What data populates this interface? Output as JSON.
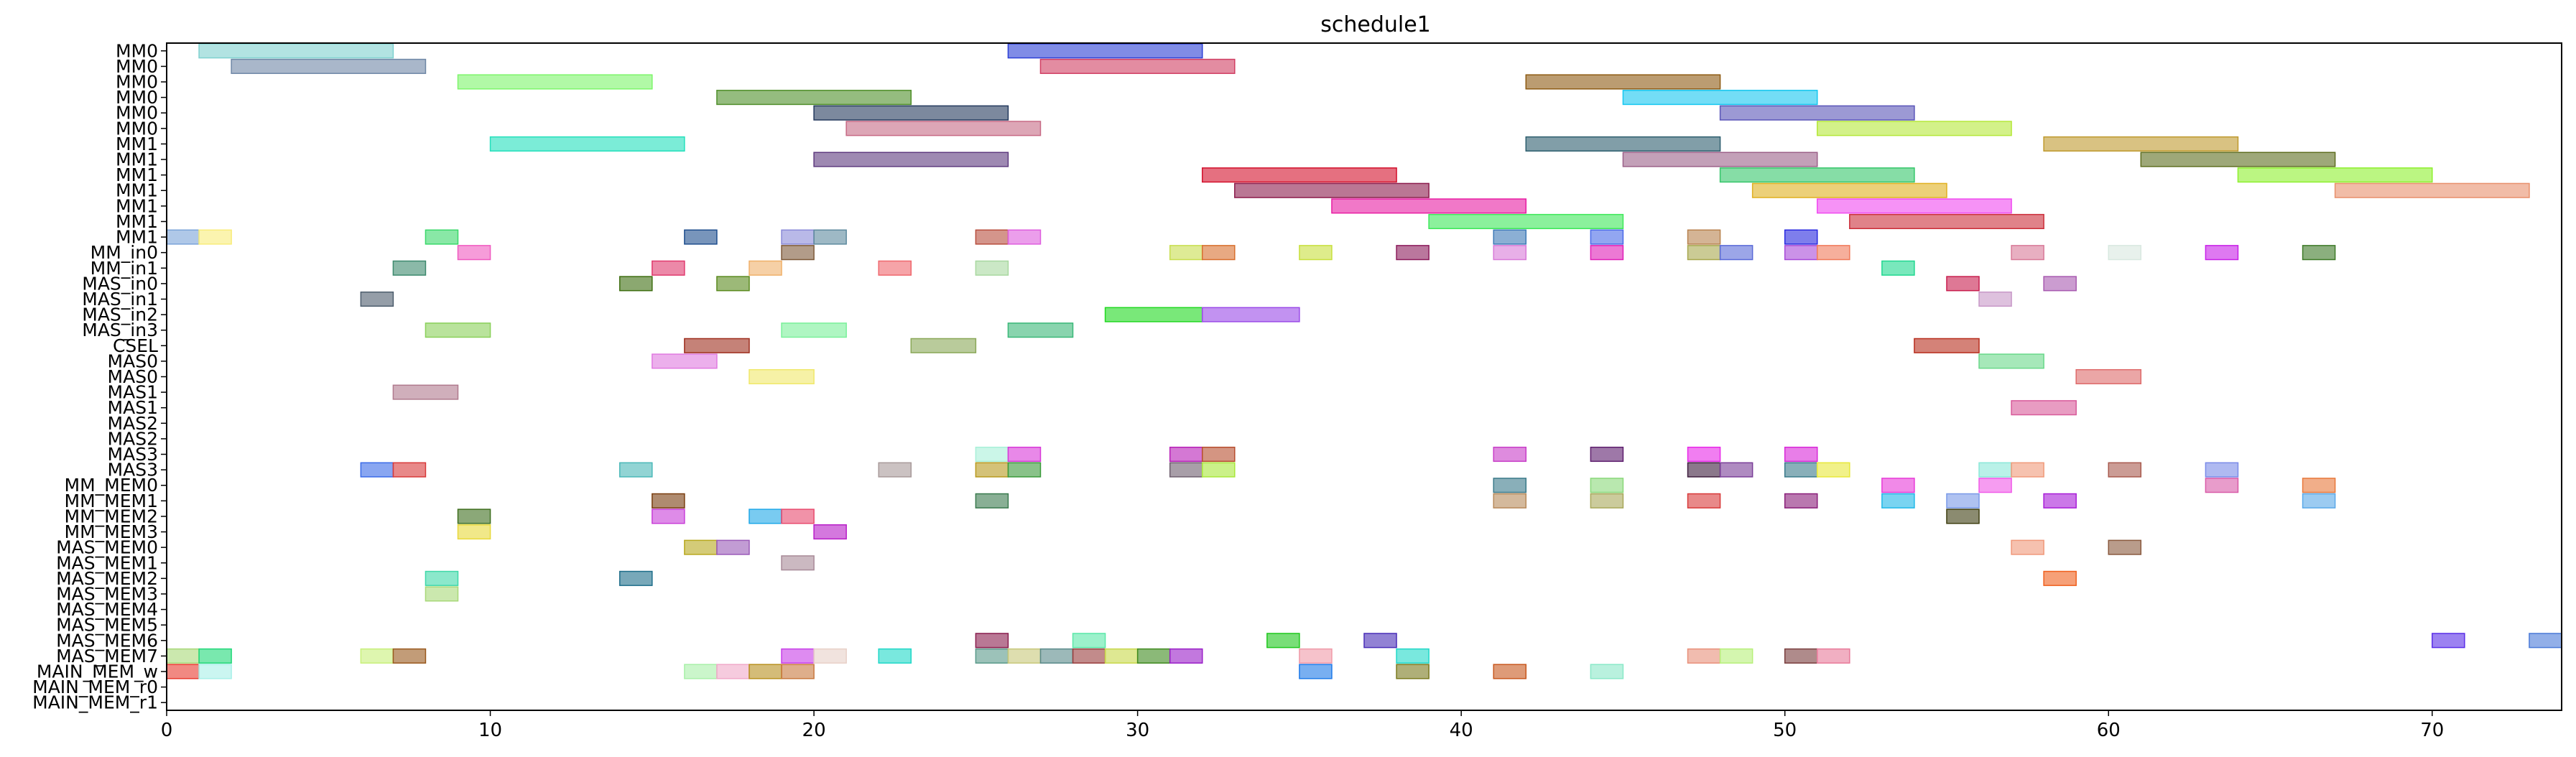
{
  "chart_data": {
    "type": "gantt",
    "title": "schedule1",
    "xlabel": "",
    "ylabel": "",
    "xlim": [
      0,
      74
    ],
    "xticks": [
      0,
      10,
      20,
      30,
      40,
      50,
      60,
      70
    ],
    "rows": [
      "MM0",
      "MM0",
      "MM0",
      "MM0",
      "MM0",
      "MM0",
      "MM1",
      "MM1",
      "MM1",
      "MM1",
      "MM1",
      "MM1",
      "MM1",
      "MM_in0",
      "MM_in1",
      "MAS_in0",
      "MAS_in1",
      "MAS_in2",
      "MAS_in3",
      "CSEL",
      "MAS0",
      "MAS0",
      "MAS1",
      "MAS1",
      "MAS2",
      "MAS2",
      "MAS3",
      "MAS3",
      "MM_MEM0",
      "MM_MEM1",
      "MM_MEM2",
      "MM_MEM3",
      "MAS_MEM0",
      "MAS_MEM1",
      "MAS_MEM2",
      "MAS_MEM3",
      "MAS_MEM4",
      "MAS_MEM5",
      "MAS_MEM6",
      "MAS_MEM7",
      "MAIN_MEM_w",
      "MAIN_MEM_r0",
      "MAIN_MEM_r1"
    ],
    "tasks": [
      {
        "row": 0,
        "start": 1,
        "end": 7,
        "color": "#7fd1cf"
      },
      {
        "row": 0,
        "start": 26,
        "end": 32,
        "color": "#2b3fd6"
      },
      {
        "row": 1,
        "start": 2,
        "end": 8,
        "color": "#6f87a6"
      },
      {
        "row": 1,
        "start": 27,
        "end": 33,
        "color": "#d13f63"
      },
      {
        "row": 2,
        "start": 9,
        "end": 15,
        "color": "#7df56a"
      },
      {
        "row": 2,
        "start": 42,
        "end": 48,
        "color": "#8d5a12"
      },
      {
        "row": 3,
        "start": 17,
        "end": 23,
        "color": "#4f8f2a"
      },
      {
        "row": 3,
        "start": 45,
        "end": 51,
        "color": "#15c7f0"
      },
      {
        "row": 4,
        "start": 20,
        "end": 26,
        "color": "#243a5e"
      },
      {
        "row": 4,
        "start": 48,
        "end": 54,
        "color": "#5a55b8"
      },
      {
        "row": 5,
        "start": 21,
        "end": 27,
        "color": "#c76a85"
      },
      {
        "row": 5,
        "start": 51,
        "end": 57,
        "color": "#b5e83a"
      },
      {
        "row": 6,
        "start": 10,
        "end": 16,
        "color": "#23e0bc"
      },
      {
        "row": 6,
        "start": 42,
        "end": 48,
        "color": "#2d5e6e"
      },
      {
        "row": 6,
        "start": 58,
        "end": 64,
        "color": "#bf9a2e"
      },
      {
        "row": 7,
        "start": 20,
        "end": 26,
        "color": "#5e3a7e"
      },
      {
        "row": 7,
        "start": 45,
        "end": 51,
        "color": "#9b6088"
      },
      {
        "row": 7,
        "start": 61,
        "end": 67,
        "color": "#5e6e1f"
      },
      {
        "row": 8,
        "start": 32,
        "end": 38,
        "color": "#d3102c"
      },
      {
        "row": 8,
        "start": 48,
        "end": 54,
        "color": "#35c66a"
      },
      {
        "row": 8,
        "start": 64,
        "end": 70,
        "color": "#8ef02e"
      },
      {
        "row": 9,
        "start": 33,
        "end": 39,
        "color": "#8c1c4c"
      },
      {
        "row": 9,
        "start": 49,
        "end": 55,
        "color": "#e0b020"
      },
      {
        "row": 9,
        "start": 67,
        "end": 73,
        "color": "#e8906c"
      },
      {
        "row": 10,
        "start": 36,
        "end": 42,
        "color": "#e81ea3"
      },
      {
        "row": 10,
        "start": 51,
        "end": 57,
        "color": "#f04af0"
      },
      {
        "row": 11,
        "start": 39,
        "end": 45,
        "color": "#3ee85a"
      },
      {
        "row": 11,
        "start": 52,
        "end": 58,
        "color": "#cc2e3a"
      },
      {
        "row": 12,
        "start": 0,
        "end": 1,
        "color": "#7aa3d8"
      },
      {
        "row": 12,
        "start": 1,
        "end": 2,
        "color": "#f8ec7a"
      },
      {
        "row": 12,
        "start": 8,
        "end": 9,
        "color": "#3ad86a"
      },
      {
        "row": 12,
        "start": 16,
        "end": 17,
        "color": "#1e4e8e"
      },
      {
        "row": 12,
        "start": 19,
        "end": 20,
        "color": "#8a8ad8"
      },
      {
        "row": 12,
        "start": 20,
        "end": 21,
        "color": "#5e8a9e"
      },
      {
        "row": 12,
        "start": 25,
        "end": 26,
        "color": "#b84e3e"
      },
      {
        "row": 12,
        "start": 26,
        "end": 27,
        "color": "#de5ede"
      },
      {
        "row": 12,
        "start": 41,
        "end": 42,
        "color": "#3e7ab8"
      },
      {
        "row": 12,
        "start": 44,
        "end": 45,
        "color": "#4a6ae8"
      },
      {
        "row": 12,
        "start": 47,
        "end": 48,
        "color": "#b8824e"
      },
      {
        "row": 12,
        "start": 50,
        "end": 51,
        "color": "#2828e0"
      },
      {
        "row": 13,
        "start": 9,
        "end": 10,
        "color": "#f05ac0"
      },
      {
        "row": 13,
        "start": 19,
        "end": 20,
        "color": "#7e5a3a"
      },
      {
        "row": 13,
        "start": 31,
        "end": 32,
        "color": "#c8de4e"
      },
      {
        "row": 13,
        "start": 32,
        "end": 33,
        "color": "#d8702e"
      },
      {
        "row": 13,
        "start": 35,
        "end": 36,
        "color": "#c8e03e"
      },
      {
        "row": 13,
        "start": 38,
        "end": 39,
        "color": "#8c1c5c"
      },
      {
        "row": 13,
        "start": 41,
        "end": 42,
        "color": "#d87ad8"
      },
      {
        "row": 13,
        "start": 44,
        "end": 45,
        "color": "#e020b8"
      },
      {
        "row": 13,
        "start": 47,
        "end": 48,
        "color": "#a8a84e"
      },
      {
        "row": 13,
        "start": 48,
        "end": 49,
        "color": "#5a6ad8"
      },
      {
        "row": 13,
        "start": 50,
        "end": 51,
        "color": "#a84ad8"
      },
      {
        "row": 13,
        "start": 51,
        "end": 52,
        "color": "#f07a5a"
      },
      {
        "row": 13,
        "start": 57,
        "end": 58,
        "color": "#d87a98"
      },
      {
        "row": 13,
        "start": 60,
        "end": 61,
        "color": "#d8e8e0"
      },
      {
        "row": 13,
        "start": 63,
        "end": 64,
        "color": "#c820e8"
      },
      {
        "row": 13,
        "start": 66,
        "end": 67,
        "color": "#3e7a28"
      },
      {
        "row": 14,
        "start": 7,
        "end": 8,
        "color": "#3e8a6e"
      },
      {
        "row": 14,
        "start": 15,
        "end": 16,
        "color": "#e03a6e"
      },
      {
        "row": 14,
        "start": 18,
        "end": 19,
        "color": "#f0b06a"
      },
      {
        "row": 14,
        "start": 22,
        "end": 23,
        "color": "#f0686e"
      },
      {
        "row": 14,
        "start": 25,
        "end": 26,
        "color": "#a8d8a0"
      },
      {
        "row": 14,
        "start": 53,
        "end": 54,
        "color": "#20d890"
      },
      {
        "row": 15,
        "start": 14,
        "end": 15,
        "color": "#3e6e10"
      },
      {
        "row": 15,
        "start": 17,
        "end": 18,
        "color": "#5a8a1e"
      },
      {
        "row": 15,
        "start": 55,
        "end": 56,
        "color": "#c81e4e"
      },
      {
        "row": 15,
        "start": 58,
        "end": 59,
        "color": "#a85ab0"
      },
      {
        "row": 16,
        "start": 6,
        "end": 7,
        "color": "#4e5e6e"
      },
      {
        "row": 16,
        "start": 56,
        "end": 57,
        "color": "#c898c8"
      },
      {
        "row": 17,
        "start": 29,
        "end": 32,
        "color": "#20d820"
      },
      {
        "row": 17,
        "start": 32,
        "end": 35,
        "color": "#9a4ae8"
      },
      {
        "row": 18,
        "start": 8,
        "end": 10,
        "color": "#8ad05a"
      },
      {
        "row": 18,
        "start": 19,
        "end": 21,
        "color": "#7af09a"
      },
      {
        "row": 18,
        "start": 26,
        "end": 28,
        "color": "#3ab878"
      },
      {
        "row": 19,
        "start": 16,
        "end": 18,
        "color": "#9e2e1e"
      },
      {
        "row": 19,
        "start": 23,
        "end": 25,
        "color": "#8aa858"
      },
      {
        "row": 19,
        "start": 54,
        "end": 56,
        "color": "#b82e1e"
      },
      {
        "row": 20,
        "start": 15,
        "end": 17,
        "color": "#e07ae0"
      },
      {
        "row": 20,
        "start": 56,
        "end": 58,
        "color": "#6ad88a"
      },
      {
        "row": 21,
        "start": 18,
        "end": 20,
        "color": "#f0e86a"
      },
      {
        "row": 21,
        "start": 59,
        "end": 61,
        "color": "#de6a6a"
      },
      {
        "row": 22,
        "start": 7,
        "end": 9,
        "color": "#b07a8e"
      },
      {
        "row": 23,
        "start": 57,
        "end": 59,
        "color": "#d85a9a"
      },
      {
        "row": 26,
        "start": 25,
        "end": 26,
        "color": "#a8f0d8"
      },
      {
        "row": 26,
        "start": 26,
        "end": 27,
        "color": "#d838d8"
      },
      {
        "row": 26,
        "start": 31,
        "end": 32,
        "color": "#b81eb8"
      },
      {
        "row": 26,
        "start": 32,
        "end": 33,
        "color": "#b84e2e"
      },
      {
        "row": 26,
        "start": 41,
        "end": 42,
        "color": "#c83ec8"
      },
      {
        "row": 26,
        "start": 44,
        "end": 45,
        "color": "#5e1e6e"
      },
      {
        "row": 26,
        "start": 47,
        "end": 48,
        "color": "#e828e8"
      },
      {
        "row": 26,
        "start": 50,
        "end": 51,
        "color": "#d828d8"
      },
      {
        "row": 27,
        "start": 6,
        "end": 7,
        "color": "#3a6ae8"
      },
      {
        "row": 27,
        "start": 7,
        "end": 8,
        "color": "#d83a3a"
      },
      {
        "row": 27,
        "start": 14,
        "end": 15,
        "color": "#4ab8b8"
      },
      {
        "row": 27,
        "start": 22,
        "end": 23,
        "color": "#a89a9a"
      },
      {
        "row": 27,
        "start": 25,
        "end": 26,
        "color": "#b89a1e"
      },
      {
        "row": 27,
        "start": 26,
        "end": 27,
        "color": "#3a9a3a"
      },
      {
        "row": 27,
        "start": 31,
        "end": 32,
        "color": "#6e5e6e"
      },
      {
        "row": 27,
        "start": 32,
        "end": 33,
        "color": "#a8e83a"
      },
      {
        "row": 27,
        "start": 47,
        "end": 48,
        "color": "#3e1e3e"
      },
      {
        "row": 27,
        "start": 48,
        "end": 49,
        "color": "#7a3e98"
      },
      {
        "row": 27,
        "start": 50,
        "end": 51,
        "color": "#3a7a8a"
      },
      {
        "row": 27,
        "start": 51,
        "end": 52,
        "color": "#e8e83a"
      },
      {
        "row": 27,
        "start": 56,
        "end": 57,
        "color": "#8ae8d8"
      },
      {
        "row": 27,
        "start": 57,
        "end": 58,
        "color": "#f09a7a"
      },
      {
        "row": 27,
        "start": 60,
        "end": 61,
        "color": "#a85a4e"
      },
      {
        "row": 27,
        "start": 63,
        "end": 64,
        "color": "#7a8ae8"
      },
      {
        "row": 28,
        "start": 41,
        "end": 42,
        "color": "#3a7a8a"
      },
      {
        "row": 28,
        "start": 44,
        "end": 45,
        "color": "#8ad87a"
      },
      {
        "row": 28,
        "start": 53,
        "end": 54,
        "color": "#e83ad8"
      },
      {
        "row": 28,
        "start": 56,
        "end": 57,
        "color": "#f05ae8"
      },
      {
        "row": 28,
        "start": 63,
        "end": 64,
        "color": "#d85aa8"
      },
      {
        "row": 28,
        "start": 66,
        "end": 67,
        "color": "#e8783a"
      },
      {
        "row": 29,
        "start": 15,
        "end": 16,
        "color": "#7a3e10"
      },
      {
        "row": 29,
        "start": 25,
        "end": 26,
        "color": "#3a7a4e"
      },
      {
        "row": 29,
        "start": 41,
        "end": 42,
        "color": "#b88a5a"
      },
      {
        "row": 29,
        "start": 44,
        "end": 45,
        "color": "#a8a85a"
      },
      {
        "row": 29,
        "start": 47,
        "end": 48,
        "color": "#d83a3a"
      },
      {
        "row": 29,
        "start": 50,
        "end": 51,
        "color": "#8a1e7a"
      },
      {
        "row": 29,
        "start": 53,
        "end": 54,
        "color": "#20b8e8"
      },
      {
        "row": 29,
        "start": 55,
        "end": 56,
        "color": "#7a9ae8"
      },
      {
        "row": 29,
        "start": 58,
        "end": 59,
        "color": "#a81ed8"
      },
      {
        "row": 29,
        "start": 66,
        "end": 67,
        "color": "#5aa8e8"
      },
      {
        "row": 30,
        "start": 9,
        "end": 10,
        "color": "#3e6e1e"
      },
      {
        "row": 30,
        "start": 15,
        "end": 16,
        "color": "#c83ed8"
      },
      {
        "row": 30,
        "start": 18,
        "end": 19,
        "color": "#20a8e8"
      },
      {
        "row": 30,
        "start": 19,
        "end": 20,
        "color": "#e84a6e"
      },
      {
        "row": 30,
        "start": 55,
        "end": 56,
        "color": "#3e3e10"
      },
      {
        "row": 31,
        "start": 9,
        "end": 10,
        "color": "#e8d83a"
      },
      {
        "row": 31,
        "start": 20,
        "end": 21,
        "color": "#b81ec8"
      },
      {
        "row": 32,
        "start": 16,
        "end": 17,
        "color": "#b8a81e"
      },
      {
        "row": 32,
        "start": 17,
        "end": 18,
        "color": "#9a5ab8"
      },
      {
        "row": 32,
        "start": 57,
        "end": 58,
        "color": "#f0987a"
      },
      {
        "row": 32,
        "start": 60,
        "end": 61,
        "color": "#8a5a3e"
      },
      {
        "row": 33,
        "start": 19,
        "end": 20,
        "color": "#a88a98"
      },
      {
        "row": 34,
        "start": 8,
        "end": 9,
        "color": "#3ed8a8"
      },
      {
        "row": 34,
        "start": 14,
        "end": 15,
        "color": "#1e6e8a"
      },
      {
        "row": 34,
        "start": 58,
        "end": 59,
        "color": "#f0601e"
      },
      {
        "row": 35,
        "start": 8,
        "end": 9,
        "color": "#a8d878"
      },
      {
        "row": 38,
        "start": 25,
        "end": 26,
        "color": "#8a1e4e"
      },
      {
        "row": 38,
        "start": 28,
        "end": 29,
        "color": "#5ae8a8"
      },
      {
        "row": 38,
        "start": 34,
        "end": 35,
        "color": "#20c81e"
      },
      {
        "row": 38,
        "start": 37,
        "end": 38,
        "color": "#4a2eb8"
      },
      {
        "row": 38,
        "start": 70,
        "end": 71,
        "color": "#5a2ee8"
      },
      {
        "row": 38,
        "start": 73,
        "end": 74,
        "color": "#4a7ad8"
      },
      {
        "row": 39,
        "start": 0,
        "end": 1,
        "color": "#a8d878"
      },
      {
        "row": 39,
        "start": 1,
        "end": 2,
        "color": "#20d878"
      },
      {
        "row": 39,
        "start": 6,
        "end": 7,
        "color": "#c8f07a"
      },
      {
        "row": 39,
        "start": 7,
        "end": 8,
        "color": "#9a5a1e"
      },
      {
        "row": 39,
        "start": 19,
        "end": 20,
        "color": "#c83ee8"
      },
      {
        "row": 39,
        "start": 20,
        "end": 21,
        "color": "#e8d0c8"
      },
      {
        "row": 39,
        "start": 22,
        "end": 23,
        "color": "#20d8c8"
      },
      {
        "row": 39,
        "start": 25,
        "end": 26,
        "color": "#5a9a8a"
      },
      {
        "row": 39,
        "start": 26,
        "end": 27,
        "color": "#c8c87a"
      },
      {
        "row": 39,
        "start": 27,
        "end": 28,
        "color": "#5a8a8a"
      },
      {
        "row": 39,
        "start": 28,
        "end": 29,
        "color": "#9a3e3e"
      },
      {
        "row": 39,
        "start": 29,
        "end": 30,
        "color": "#c8d84a"
      },
      {
        "row": 39,
        "start": 30,
        "end": 31,
        "color": "#3e8a1e"
      },
      {
        "row": 39,
        "start": 31,
        "end": 32,
        "color": "#9a1ec8"
      },
      {
        "row": 39,
        "start": 35,
        "end": 36,
        "color": "#f09aa8"
      },
      {
        "row": 39,
        "start": 38,
        "end": 39,
        "color": "#20d8c8"
      },
      {
        "row": 39,
        "start": 47,
        "end": 48,
        "color": "#e8907a"
      },
      {
        "row": 39,
        "start": 48,
        "end": 49,
        "color": "#b8f07a"
      },
      {
        "row": 39,
        "start": 50,
        "end": 51,
        "color": "#7a3e3e"
      },
      {
        "row": 39,
        "start": 51,
        "end": 52,
        "color": "#e87a9a"
      },
      {
        "row": 40,
        "start": 0,
        "end": 1,
        "color": "#e83a2e"
      },
      {
        "row": 40,
        "start": 1,
        "end": 2,
        "color": "#a8f0e8"
      },
      {
        "row": 40,
        "start": 16,
        "end": 17,
        "color": "#a8f0a8"
      },
      {
        "row": 40,
        "start": 17,
        "end": 18,
        "color": "#f0a8c8"
      },
      {
        "row": 40,
        "start": 18,
        "end": 19,
        "color": "#b8901e"
      },
      {
        "row": 40,
        "start": 19,
        "end": 20,
        "color": "#c8783e"
      },
      {
        "row": 40,
        "start": 35,
        "end": 36,
        "color": "#1e7ae8"
      },
      {
        "row": 40,
        "start": 38,
        "end": 39,
        "color": "#7a7a1e"
      },
      {
        "row": 40,
        "start": 41,
        "end": 42,
        "color": "#c8581e"
      },
      {
        "row": 40,
        "start": 44,
        "end": 45,
        "color": "#8ae8c8"
      }
    ]
  }
}
